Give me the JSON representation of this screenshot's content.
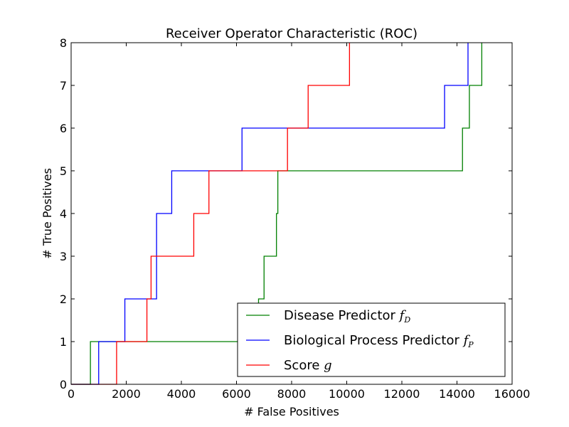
{
  "chart_data": {
    "type": "line",
    "title": "Receiver Operator Characteristic (ROC)",
    "xlabel": "# False Positives",
    "ylabel": "# True Positives",
    "xlim": [
      0,
      16000
    ],
    "ylim": [
      0,
      8
    ],
    "x_ticks": [
      0,
      2000,
      4000,
      6000,
      8000,
      10000,
      12000,
      14000,
      16000
    ],
    "y_ticks": [
      0,
      1,
      2,
      3,
      4,
      5,
      6,
      7,
      8
    ],
    "grid": false,
    "legend_position": "lower-right",
    "series": [
      {
        "name": "Disease Predictor",
        "legend_main": "Disease Predictor",
        "legend_math": "f",
        "legend_sub": "D",
        "color": "#008000",
        "points": [
          [
            0,
            0
          ],
          [
            700,
            0
          ],
          [
            700,
            1
          ],
          [
            6800,
            1
          ],
          [
            6800,
            2
          ],
          [
            7000,
            2
          ],
          [
            7000,
            3
          ],
          [
            7450,
            3
          ],
          [
            7450,
            4
          ],
          [
            7500,
            4
          ],
          [
            7500,
            5
          ],
          [
            14200,
            5
          ],
          [
            14200,
            6
          ],
          [
            14450,
            6
          ],
          [
            14450,
            7
          ],
          [
            14900,
            7
          ],
          [
            14900,
            8
          ]
        ]
      },
      {
        "name": "Biological Process Predictor",
        "legend_main": "Biological Process Predictor",
        "legend_math": "f",
        "legend_sub": "P",
        "color": "#0000ff",
        "points": [
          [
            0,
            0
          ],
          [
            1000,
            0
          ],
          [
            1000,
            1
          ],
          [
            1950,
            1
          ],
          [
            1950,
            2
          ],
          [
            3100,
            2
          ],
          [
            3100,
            4
          ],
          [
            3650,
            4
          ],
          [
            3650,
            5
          ],
          [
            6200,
            5
          ],
          [
            6200,
            6
          ],
          [
            13550,
            6
          ],
          [
            13550,
            7
          ],
          [
            14400,
            7
          ],
          [
            14400,
            8
          ]
        ]
      },
      {
        "name": "Score",
        "legend_main": "Score",
        "legend_math": "g",
        "legend_sub": "",
        "color": "#ff0000",
        "points": [
          [
            0,
            0
          ],
          [
            1650,
            0
          ],
          [
            1650,
            1
          ],
          [
            2750,
            1
          ],
          [
            2750,
            2
          ],
          [
            2900,
            2
          ],
          [
            2900,
            3
          ],
          [
            4450,
            3
          ],
          [
            4450,
            4
          ],
          [
            5000,
            4
          ],
          [
            5000,
            5
          ],
          [
            7850,
            5
          ],
          [
            7850,
            6
          ],
          [
            8600,
            6
          ],
          [
            8600,
            7
          ],
          [
            10100,
            7
          ],
          [
            10100,
            8
          ]
        ]
      }
    ]
  }
}
